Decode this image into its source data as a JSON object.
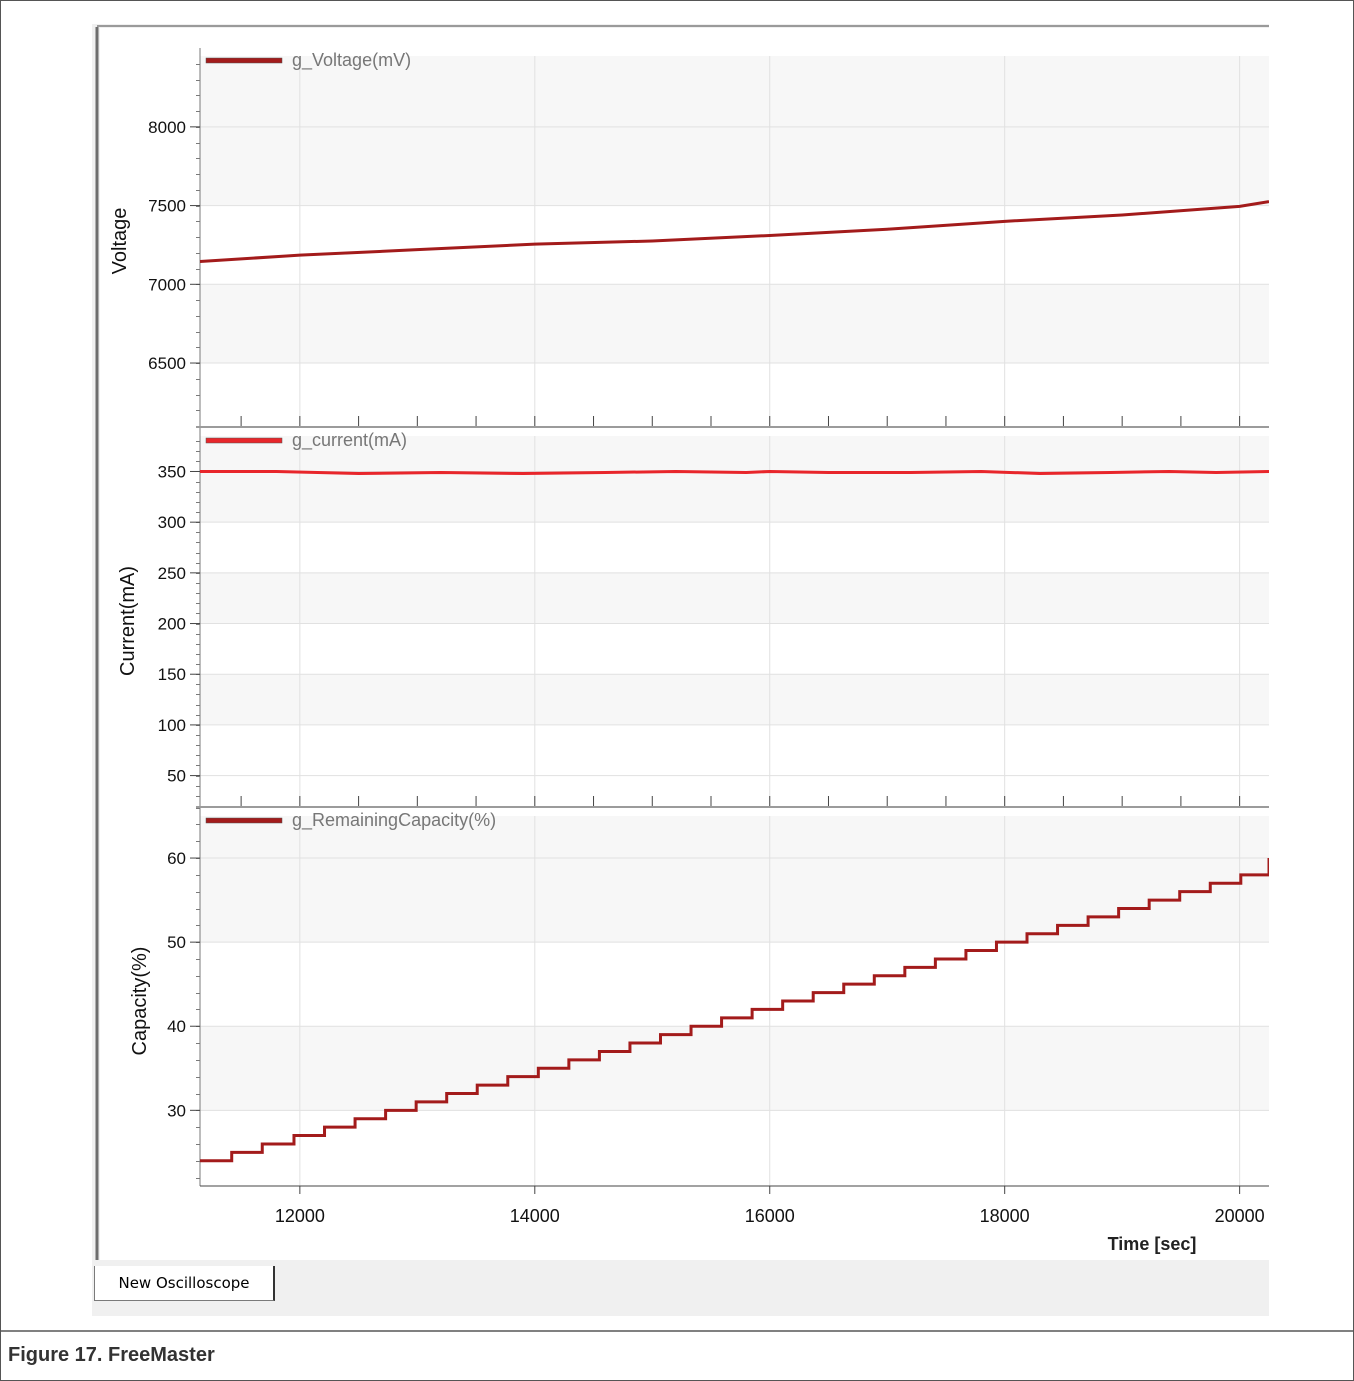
{
  "caption": "Figure 17. FreeMaster",
  "tab": {
    "label": "New Oscilloscope"
  },
  "x_axis": {
    "label": "Time [sec]",
    "range": [
      11150,
      20250
    ],
    "ticks": [
      12000,
      14000,
      16000,
      18000,
      20000
    ]
  },
  "chart_data": [
    {
      "type": "line",
      "legend": "g_Voltage(mV)",
      "ylabel": "Voltage",
      "ylim": [
        6100,
        8450
      ],
      "yticks": [
        6500,
        7000,
        7500,
        8000
      ],
      "color": "#a31b1b",
      "grid": true,
      "x": [
        11150,
        12000,
        13000,
        14000,
        15000,
        16000,
        17000,
        18000,
        19000,
        20000,
        20250
      ],
      "y": [
        7145,
        7185,
        7220,
        7255,
        7275,
        7310,
        7350,
        7400,
        7440,
        7495,
        7525
      ]
    },
    {
      "type": "line",
      "legend": "g_current(mA)",
      "ylabel": "Current(mA)",
      "ylim": [
        20,
        385
      ],
      "yticks": [
        50,
        100,
        150,
        200,
        250,
        300,
        350
      ],
      "color": "#e8262b",
      "grid": true,
      "x": [
        11150,
        11800,
        12500,
        13200,
        13900,
        14600,
        15200,
        15800,
        16000,
        16500,
        17200,
        17800,
        18300,
        18900,
        19400,
        19800,
        20250
      ],
      "y": [
        350,
        350,
        348,
        349,
        348,
        349,
        350,
        349,
        350,
        349,
        349,
        350,
        348,
        349,
        350,
        349,
        350
      ]
    },
    {
      "type": "line",
      "legend": "g_RemainingCapacity(%)",
      "ylabel": "Capacity(%)",
      "ylim": [
        21,
        65
      ],
      "yticks": [
        30,
        40,
        50,
        60
      ],
      "color": "#a31b1b",
      "grid": true,
      "step": true,
      "x": [
        11150,
        11420,
        11680,
        11950,
        12210,
        12470,
        12730,
        12990,
        13250,
        13510,
        13770,
        14030,
        14290,
        14550,
        14810,
        15070,
        15330,
        15590,
        15850,
        16110,
        16370,
        16630,
        16890,
        17150,
        17410,
        17670,
        17930,
        18190,
        18450,
        18710,
        18970,
        19230,
        19490,
        19750,
        20010,
        20250
      ],
      "y": [
        24,
        25,
        26,
        27,
        28,
        29,
        30,
        31,
        32,
        33,
        34,
        35,
        36,
        37,
        38,
        39,
        40,
        41,
        42,
        43,
        44,
        45,
        46,
        47,
        48,
        49,
        50,
        51,
        52,
        53,
        54,
        55,
        56,
        57,
        58,
        60
      ]
    }
  ]
}
